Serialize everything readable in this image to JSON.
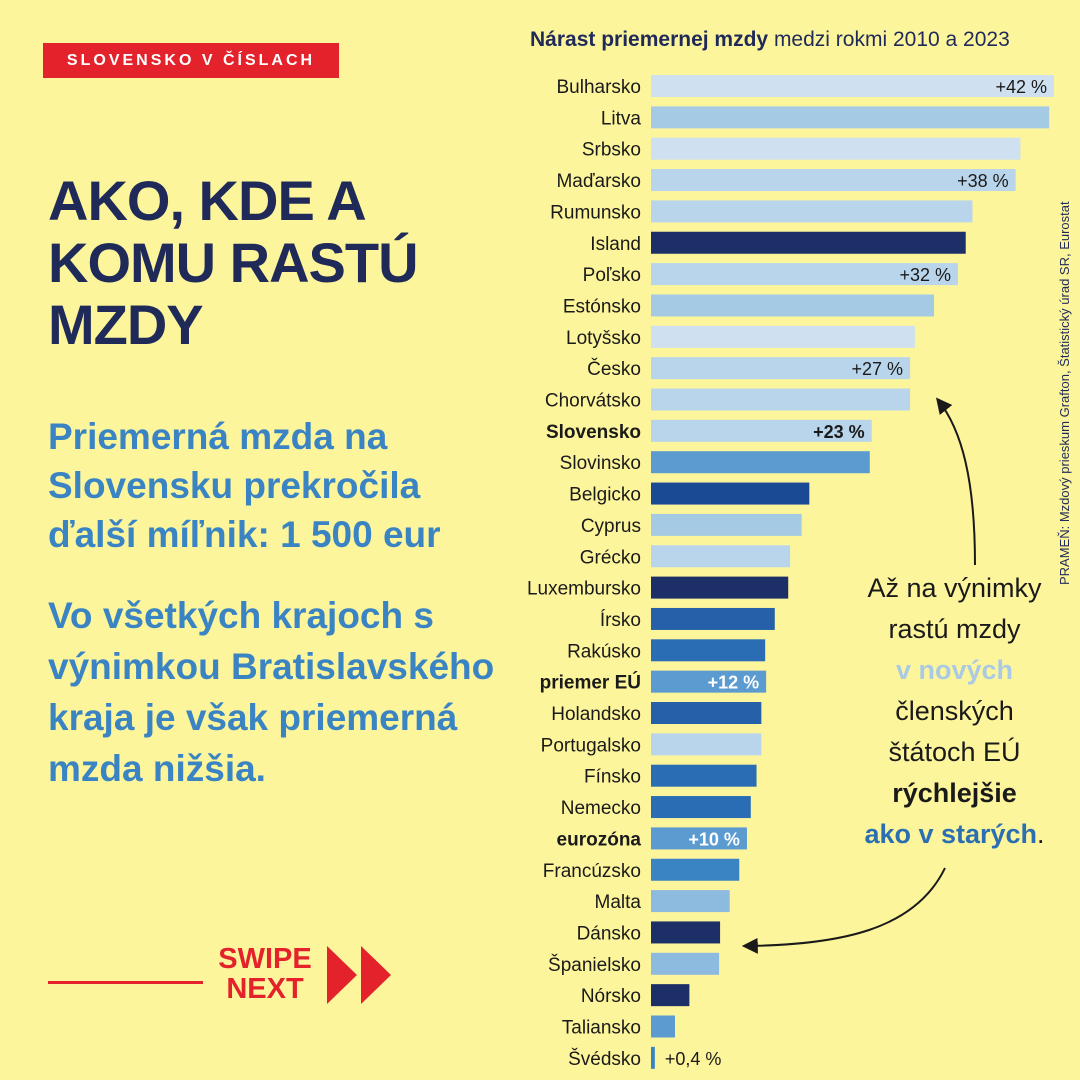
{
  "tag": "SLOVENSKO V ČÍSLACH",
  "headline": [
    "AKO, KDE A",
    "KOMU RASTÚ",
    "MZDY"
  ],
  "subheading_1": "Priemerná mzda na Slovensku prekročila ďalší míľnik: 1 500 eur",
  "subheading_2": "Vo všetkých krajoch s výnimkou Bratislavského kraja je však priemerná mzda nižšia.",
  "swipe": {
    "line1": "SWIPE",
    "line2": "NEXT"
  },
  "source": "PRAMEŇ: Mzdový prieskum Grafton, Štatistický úrad SR, Eurostat",
  "callout": {
    "l1": "Až na výnimky",
    "l2": "rastú mzdy",
    "l3": "v nových",
    "l4": "členských",
    "l5": "štátoch EÚ",
    "l6": "rýchlejšie",
    "l7": "ako v starých",
    "l7_end": "."
  },
  "colors": {
    "background": "#fdf59c",
    "navy": "#1f2a59",
    "accent_red": "#e3222b",
    "text_blue": "#3a84c3"
  },
  "chart_data": {
    "type": "bar",
    "orientation": "horizontal",
    "title_bold": "Nárast priemernej mzdy",
    "title_rest": " medzi rokmi 2010 a 2023",
    "unit": "%",
    "xlim": [
      0,
      42
    ],
    "rows": [
      {
        "label": "Bulharsko",
        "value": 42,
        "color": "#cfe0f0",
        "value_label": "+42 %"
      },
      {
        "label": "Litva",
        "value": 41.5,
        "color": "#a5cbe4"
      },
      {
        "label": "Srbsko",
        "value": 38.5,
        "color": "#cfe0f0"
      },
      {
        "label": "Maďarsko",
        "value": 38,
        "color": "#b9d5eb",
        "value_label": "+38 %"
      },
      {
        "label": "Rumunsko",
        "value": 33.5,
        "color": "#b9d5eb"
      },
      {
        "label": "Island",
        "value": 32.8,
        "color": "#1c2f66"
      },
      {
        "label": "Poľsko",
        "value": 32,
        "color": "#b9d5eb",
        "value_label": "+32 %"
      },
      {
        "label": "Estónsko",
        "value": 29.5,
        "color": "#a5cbe4"
      },
      {
        "label": "Lotyšsko",
        "value": 27.5,
        "color": "#cfe0f0"
      },
      {
        "label": "Česko",
        "value": 27,
        "color": "#b9d5eb",
        "value_label": "+27 %"
      },
      {
        "label": "Chorvátsko",
        "value": 27,
        "color": "#b9d5eb"
      },
      {
        "label": "Slovensko",
        "value": 23,
        "color": "#b9d5eb",
        "value_label": "+23 %",
        "bold": true
      },
      {
        "label": "Slovinsko",
        "value": 22.8,
        "color": "#5b9bd0"
      },
      {
        "label": "Belgicko",
        "value": 16.5,
        "color": "#1a4a94"
      },
      {
        "label": "Cyprus",
        "value": 15.7,
        "color": "#a5cbe4"
      },
      {
        "label": "Grécko",
        "value": 14.5,
        "color": "#b9d5eb"
      },
      {
        "label": "Luxembursko",
        "value": 14.3,
        "color": "#1c2f66"
      },
      {
        "label": "Írsko",
        "value": 12.9,
        "color": "#2660a8"
      },
      {
        "label": "Rakúsko",
        "value": 11.9,
        "color": "#2a6db5"
      },
      {
        "label": "priemer EÚ",
        "value": 12,
        "color": "#5b9bd0",
        "value_label": "+12 %",
        "bold": true
      },
      {
        "label": "Holandsko",
        "value": 11.5,
        "color": "#2660a8"
      },
      {
        "label": "Portugalsko",
        "value": 11.5,
        "color": "#b9d5eb"
      },
      {
        "label": "Fínsko",
        "value": 11,
        "color": "#2a6db5"
      },
      {
        "label": "Nemecko",
        "value": 10.4,
        "color": "#2a6db5"
      },
      {
        "label": "eurozóna",
        "value": 10,
        "color": "#5b9bd0",
        "value_label": "+10 %",
        "bold": true
      },
      {
        "label": "Francúzsko",
        "value": 9.2,
        "color": "#3a84c3"
      },
      {
        "label": "Malta",
        "value": 8.2,
        "color": "#8dbadf"
      },
      {
        "label": "Dánsko",
        "value": 7.2,
        "color": "#1c2f66"
      },
      {
        "label": "Španielsko",
        "value": 7.1,
        "color": "#8dbadf"
      },
      {
        "label": "Nórsko",
        "value": 4,
        "color": "#1c2f66"
      },
      {
        "label": "Taliansko",
        "value": 2.5,
        "color": "#5b9bd0"
      },
      {
        "label": "Švédsko",
        "value": 0.4,
        "color": "#3a84c3",
        "value_label": "+0,4 %",
        "label_outside": true
      }
    ]
  }
}
